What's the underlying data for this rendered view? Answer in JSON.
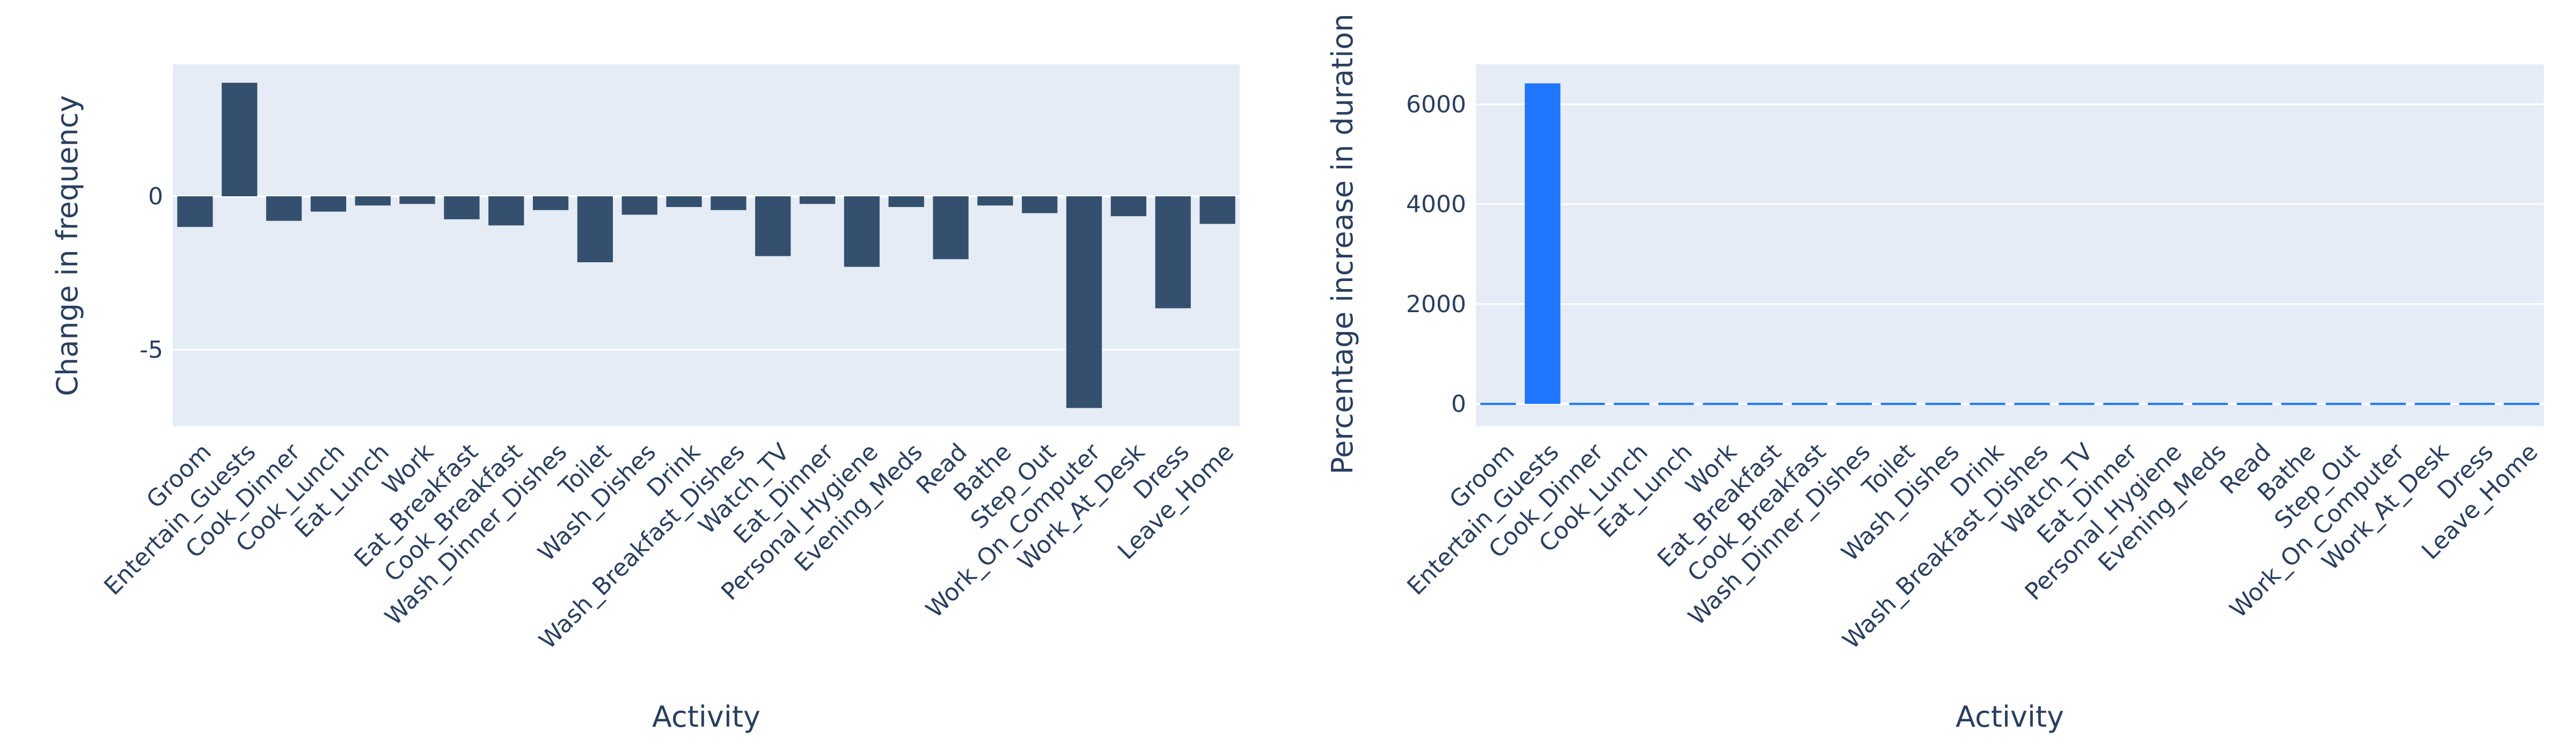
{
  "chart_data": [
    {
      "type": "bar",
      "xlabel": "Activity",
      "ylabel": "Change in frequency",
      "bar_color": "#34506e",
      "grid": true,
      "ylim": [
        -7.5,
        4.3
      ],
      "yticks": [
        0,
        -5
      ],
      "categories": [
        "Groom",
        "Entertain_Guests",
        "Cook_Dinner",
        "Cook_Lunch",
        "Eat_Lunch",
        "Work",
        "Eat_Breakfast",
        "Cook_Breakfast",
        "Wash_Dinner_Dishes",
        "Toilet",
        "Wash_Dishes",
        "Drink",
        "Wash_Breakfast_Dishes",
        "Watch_TV",
        "Eat_Dinner",
        "Personal_Hygiene",
        "Evening_Meds",
        "Read",
        "Bathe",
        "Step_Out",
        "Work_On_Computer",
        "Work_At_Desk",
        "Dress",
        "Leave_Home"
      ],
      "values": [
        -1.0,
        3.7,
        -0.8,
        -0.5,
        -0.3,
        -0.25,
        -0.75,
        -0.95,
        -0.45,
        -2.15,
        -0.6,
        -0.35,
        -0.45,
        -1.95,
        -0.25,
        -2.3,
        -0.35,
        -2.05,
        -0.3,
        -0.55,
        -6.9,
        -0.65,
        -3.65,
        -0.9
      ]
    },
    {
      "type": "bar",
      "xlabel": "Activity",
      "ylabel": "Percentage increase in duration",
      "bar_color": "#1f77ff",
      "grid": true,
      "ylim": [
        -450,
        6800
      ],
      "yticks": [
        0,
        2000,
        4000,
        6000
      ],
      "categories": [
        "Groom",
        "Entertain_Guests",
        "Cook_Dinner",
        "Cook_Lunch",
        "Eat_Lunch",
        "Work",
        "Eat_Breakfast",
        "Cook_Breakfast",
        "Wash_Dinner_Dishes",
        "Toilet",
        "Wash_Dishes",
        "Drink",
        "Wash_Breakfast_Dishes",
        "Watch_TV",
        "Eat_Dinner",
        "Personal_Hygiene",
        "Evening_Meds",
        "Read",
        "Bathe",
        "Step_Out",
        "Work_On_Computer",
        "Work_At_Desk",
        "Dress",
        "Leave_Home"
      ],
      "values": [
        -40,
        6420,
        -40,
        -40,
        -40,
        -40,
        -40,
        -40,
        -40,
        -25,
        -40,
        0,
        -40,
        -40,
        -40,
        -40,
        -40,
        -40,
        -40,
        -40,
        -40,
        -40,
        -40,
        -15
      ]
    }
  ]
}
